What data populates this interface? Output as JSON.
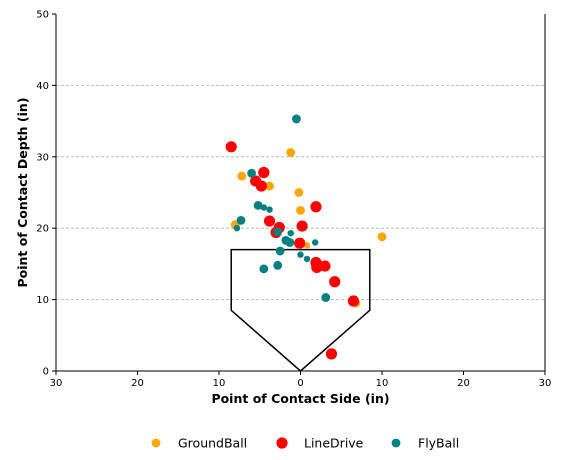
{
  "chart_data": {
    "type": "scatter",
    "title": "",
    "xlabel": "Point of Contact Side (in)",
    "ylabel": "Point of Contact Depth (in)",
    "xlim": [
      -30,
      30
    ],
    "ylim": [
      0,
      50
    ],
    "x_ticks": [
      -30,
      -20,
      -10,
      0,
      10,
      20,
      30
    ],
    "x_tick_labels": [
      "30",
      "20",
      "10",
      "0",
      "10",
      "20",
      "30"
    ],
    "y_ticks": [
      0,
      10,
      20,
      30,
      40,
      50
    ],
    "y_tick_labels": [
      "0",
      "10",
      "20",
      "30",
      "40",
      "50"
    ],
    "grid": "y-dashed",
    "legend_position": "bottom",
    "home_plate": [
      [
        -8.5,
        17
      ],
      [
        8.5,
        17
      ],
      [
        8.5,
        8.5
      ],
      [
        0,
        0
      ],
      [
        -8.5,
        8.5
      ]
    ],
    "series": [
      {
        "name": "GroundBall",
        "color": "#FFA500",
        "points": [
          {
            "x": -1.2,
            "y": 30.6,
            "s": "m"
          },
          {
            "x": -7.2,
            "y": 27.3,
            "s": "m"
          },
          {
            "x": -3.8,
            "y": 25.9,
            "s": "m"
          },
          {
            "x": -0.2,
            "y": 25.0,
            "s": "m"
          },
          {
            "x": 0.0,
            "y": 22.5,
            "s": "m"
          },
          {
            "x": 10.0,
            "y": 18.8,
            "s": "m"
          },
          {
            "x": -8.0,
            "y": 20.5,
            "s": "m"
          },
          {
            "x": 6.8,
            "y": 9.5,
            "s": "m"
          },
          {
            "x": 0.8,
            "y": 17.6,
            "s": "s"
          }
        ]
      },
      {
        "name": "LineDrive",
        "color": "#FF0000",
        "points": [
          {
            "x": -8.5,
            "y": 31.4,
            "s": "l"
          },
          {
            "x": -4.5,
            "y": 27.8,
            "s": "l"
          },
          {
            "x": -5.5,
            "y": 26.6,
            "s": "l"
          },
          {
            "x": -4.8,
            "y": 25.9,
            "s": "l"
          },
          {
            "x": 1.9,
            "y": 23.0,
            "s": "l"
          },
          {
            "x": -3.8,
            "y": 21.0,
            "s": "l"
          },
          {
            "x": 0.2,
            "y": 20.3,
            "s": "l"
          },
          {
            "x": -2.6,
            "y": 20.1,
            "s": "l"
          },
          {
            "x": -3.0,
            "y": 19.4,
            "s": "l"
          },
          {
            "x": -0.1,
            "y": 17.9,
            "s": "l"
          },
          {
            "x": 1.9,
            "y": 15.2,
            "s": "l"
          },
          {
            "x": 2.0,
            "y": 14.5,
            "s": "l"
          },
          {
            "x": 3.0,
            "y": 14.7,
            "s": "l"
          },
          {
            "x": 4.2,
            "y": 12.5,
            "s": "l"
          },
          {
            "x": 6.5,
            "y": 9.8,
            "s": "l"
          },
          {
            "x": 3.8,
            "y": 2.4,
            "s": "l"
          }
        ]
      },
      {
        "name": "FlyBall",
        "color": "#008080",
        "points": [
          {
            "x": -0.5,
            "y": 35.3,
            "s": "m"
          },
          {
            "x": -6.0,
            "y": 27.7,
            "s": "m"
          },
          {
            "x": -5.2,
            "y": 23.2,
            "s": "m"
          },
          {
            "x": -4.5,
            "y": 22.9,
            "s": "s"
          },
          {
            "x": -3.8,
            "y": 22.6,
            "s": "s"
          },
          {
            "x": -7.3,
            "y": 21.1,
            "s": "m"
          },
          {
            "x": -7.8,
            "y": 20.0,
            "s": "s"
          },
          {
            "x": -2.8,
            "y": 19.5,
            "s": "m"
          },
          {
            "x": -1.2,
            "y": 19.3,
            "s": "s"
          },
          {
            "x": -1.8,
            "y": 18.3,
            "s": "m"
          },
          {
            "x": -1.3,
            "y": 18.0,
            "s": "m"
          },
          {
            "x": 1.8,
            "y": 18.0,
            "s": "s"
          },
          {
            "x": -2.5,
            "y": 16.8,
            "s": "m"
          },
          {
            "x": 0.0,
            "y": 16.3,
            "s": "s"
          },
          {
            "x": 0.8,
            "y": 15.7,
            "s": "s"
          },
          {
            "x": -4.5,
            "y": 14.3,
            "s": "m"
          },
          {
            "x": -2.8,
            "y": 14.8,
            "s": "m"
          },
          {
            "x": 3.1,
            "y": 10.3,
            "s": "m"
          }
        ]
      }
    ]
  }
}
